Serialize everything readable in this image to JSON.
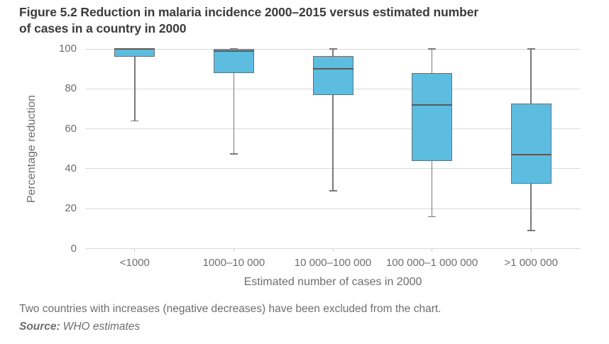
{
  "title": {
    "lines": [
      "Figure 5.2 Reduction in malaria incidence 2000–2015 versus estimated number",
      "of cases in a country in 2000"
    ]
  },
  "footnote": "Two countries with increases (negative decreases) have been excluded from the chart.",
  "source": {
    "label": "Source:",
    "text": "WHO estimates"
  },
  "colors": {
    "box_fill": "#5CBDE0",
    "box_border": "#6D6E71",
    "whisker": "#77787B",
    "median": "#58595B",
    "gridline": "#D9DADB",
    "x_tick": "#C9CACC",
    "axis_text": "#6D6E71",
    "title_text": "#3B3B3A"
  },
  "chart_data": {
    "type": "boxplot",
    "title": "Figure 5.2 Reduction in malaria incidence 2000–2015 versus estimated number of cases in a country in 2000",
    "xlabel": "Estimated number of cases in 2000",
    "ylabel": "Percentage reduction",
    "ylim": [
      0,
      100
    ],
    "yticks": [
      0,
      20,
      40,
      60,
      80,
      100
    ],
    "grid": "horizontal",
    "legend": "none",
    "categories": [
      "<1000",
      "1000–10 000",
      "10 000–100 000",
      "100 000–1 000 000",
      ">1 000 000"
    ],
    "series": [
      {
        "name": "Percentage reduction in malaria incidence 2000–2015",
        "boxes": [
          {
            "category": "<1000",
            "min": 64,
            "q1": 96,
            "median": 100,
            "q3": 100,
            "max": 100
          },
          {
            "category": "1000–10 000",
            "min": 47.5,
            "q1": 88,
            "median": 99,
            "q3": 100,
            "max": 100
          },
          {
            "category": "10 000–100 000",
            "min": 29,
            "q1": 77,
            "median": 90,
            "q3": 96.5,
            "max": 100
          },
          {
            "category": "100 000–1 000 000",
            "min": 16,
            "q1": 44,
            "median": 72,
            "q3": 88,
            "max": 100
          },
          {
            "category": ">1 000 000",
            "min": 9,
            "q1": 32.5,
            "median": 47,
            "q3": 72.5,
            "max": 100
          }
        ]
      }
    ],
    "annotations": [
      "Two countries with increases (negative decreases) have been excluded from the chart."
    ],
    "source": "WHO estimates"
  }
}
